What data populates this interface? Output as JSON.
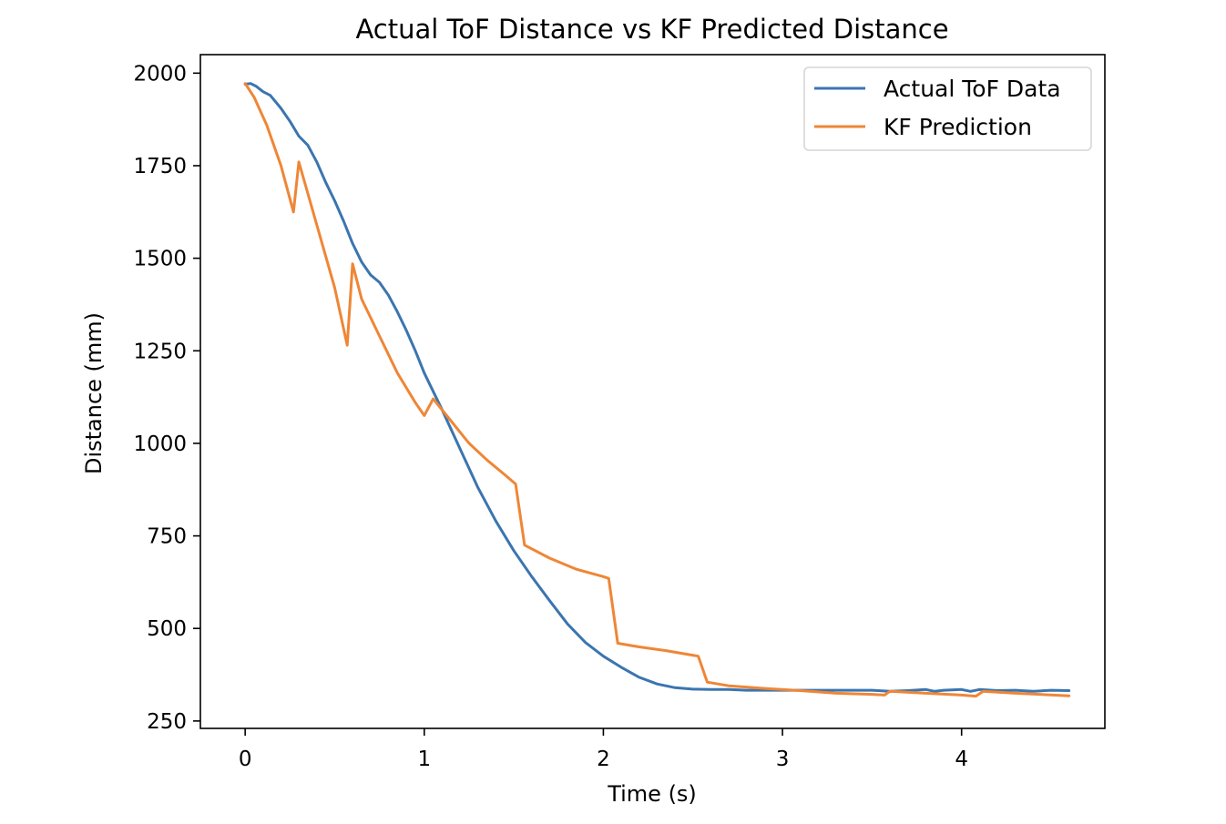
{
  "chart_data": {
    "type": "line",
    "title": "Actual ToF Distance vs KF Predicted Distance",
    "xlabel": "Time (s)",
    "ylabel": "Distance (mm)",
    "xlim": [
      -0.25,
      4.8
    ],
    "ylim": [
      230,
      2050
    ],
    "xticks": [
      0,
      1,
      2,
      3,
      4
    ],
    "yticks": [
      250,
      500,
      750,
      1000,
      1250,
      1500,
      1750,
      2000
    ],
    "grid": false,
    "legend_position": "top-right",
    "series": [
      {
        "name": "Actual ToF Data",
        "color": "#3b75af",
        "x": [
          0,
          0.03,
          0.06,
          0.1,
          0.14,
          0.2,
          0.25,
          0.3,
          0.35,
          0.4,
          0.45,
          0.5,
          0.55,
          0.6,
          0.65,
          0.7,
          0.75,
          0.8,
          0.85,
          0.9,
          0.95,
          1.0,
          1.1,
          1.2,
          1.3,
          1.4,
          1.5,
          1.6,
          1.7,
          1.8,
          1.9,
          2.0,
          2.1,
          2.2,
          2.3,
          2.4,
          2.5,
          2.6,
          2.7,
          2.8,
          2.9,
          3.0,
          3.2,
          3.4,
          3.5,
          3.6,
          3.7,
          3.8,
          3.85,
          3.9,
          4.0,
          4.05,
          4.1,
          4.2,
          4.3,
          4.4,
          4.5,
          4.6
        ],
        "y": [
          1970,
          1972,
          1965,
          1950,
          1940,
          1905,
          1870,
          1830,
          1805,
          1760,
          1705,
          1655,
          1600,
          1540,
          1490,
          1455,
          1435,
          1400,
          1355,
          1305,
          1250,
          1190,
          1090,
          985,
          880,
          790,
          710,
          640,
          575,
          512,
          462,
          425,
          395,
          368,
          350,
          340,
          336,
          335,
          335,
          333,
          333,
          333,
          333,
          333,
          333,
          330,
          332,
          335,
          330,
          333,
          335,
          330,
          335,
          332,
          333,
          330,
          333,
          332
        ]
      },
      {
        "name": "KF Prediction",
        "color": "#ef8636",
        "x": [
          0,
          0.05,
          0.12,
          0.2,
          0.27,
          0.3,
          0.4,
          0.5,
          0.57,
          0.6,
          0.65,
          0.75,
          0.85,
          0.95,
          1.0,
          1.05,
          1.15,
          1.25,
          1.35,
          1.45,
          1.51,
          1.56,
          1.7,
          1.85,
          2.0,
          2.03,
          2.08,
          2.2,
          2.35,
          2.53,
          2.58,
          2.7,
          2.9,
          3.1,
          3.3,
          3.5,
          3.57,
          3.6,
          3.8,
          4.0,
          4.08,
          4.12,
          4.3,
          4.6
        ],
        "y": [
          1972,
          1935,
          1860,
          1750,
          1625,
          1760,
          1590,
          1420,
          1265,
          1485,
          1390,
          1290,
          1190,
          1110,
          1075,
          1120,
          1060,
          1000,
          955,
          915,
          890,
          725,
          690,
          660,
          640,
          635,
          460,
          450,
          440,
          425,
          355,
          345,
          338,
          332,
          325,
          322,
          320,
          330,
          325,
          320,
          317,
          330,
          325,
          318
        ]
      }
    ]
  }
}
